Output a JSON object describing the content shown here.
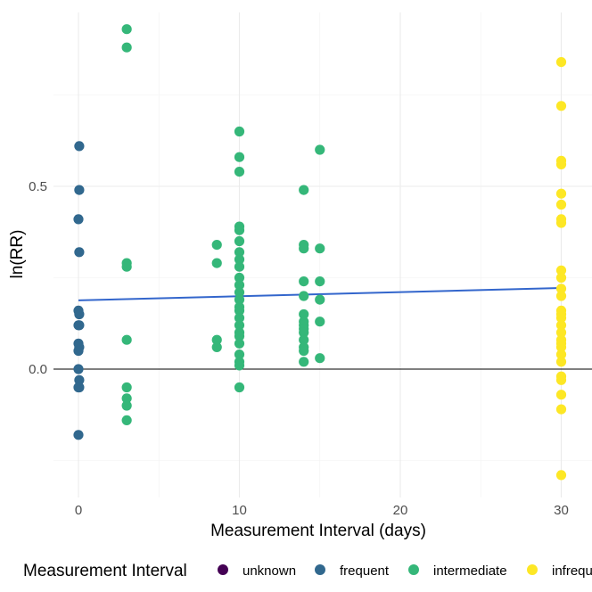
{
  "chart_data": {
    "type": "scatter",
    "title": "",
    "xlabel": "Measurement Interval (days)",
    "ylabel": "ln(RR)",
    "xlim": [
      -2,
      32
    ],
    "ylim": [
      -0.35,
      0.94
    ],
    "x_ticks": [
      0,
      10,
      20,
      30
    ],
    "y_ticks": [
      0.0,
      0.5
    ],
    "x_tick_labels": [
      "0",
      "10",
      "20",
      "30"
    ],
    "y_tick_labels": [
      "0.0",
      "0.5"
    ],
    "grid": true,
    "reference_line_y": 0,
    "legend": {
      "title": "Measurement Interval",
      "position": "bottom",
      "entries": [
        {
          "name": "unknown",
          "color": "#440154"
        },
        {
          "name": "frequent",
          "color": "#31688e"
        },
        {
          "name": "intermediate",
          "color": "#35b779"
        },
        {
          "name": "infrequent",
          "color": "#fde725"
        }
      ]
    },
    "trend_line": {
      "color": "#3366cc",
      "points": [
        [
          0,
          0.188
        ],
        [
          30,
          0.222
        ]
      ]
    },
    "series": [
      {
        "name": "frequent",
        "color": "#31688e",
        "points": [
          [
            0.05,
            0.61
          ],
          [
            0.05,
            0.49
          ],
          [
            0.0,
            0.41
          ],
          [
            0.05,
            0.32
          ],
          [
            0.0,
            0.16
          ],
          [
            0.05,
            0.15
          ],
          [
            0.0,
            0.12
          ],
          [
            0.05,
            0.12
          ],
          [
            0.0,
            0.07
          ],
          [
            0.05,
            0.06
          ],
          [
            0.0,
            0.05
          ],
          [
            0.0,
            0.0
          ],
          [
            0.05,
            -0.03
          ],
          [
            0.0,
            -0.05
          ],
          [
            0.05,
            -0.05
          ],
          [
            0.0,
            -0.18
          ]
        ]
      },
      {
        "name": "intermediate",
        "color": "#35b779",
        "points": [
          [
            3,
            0.93
          ],
          [
            3,
            0.88
          ],
          [
            3,
            0.29
          ],
          [
            3,
            0.28
          ],
          [
            3,
            0.08
          ],
          [
            3,
            -0.05
          ],
          [
            3,
            -0.08
          ],
          [
            3,
            -0.1
          ],
          [
            3,
            -0.14
          ],
          [
            8.6,
            0.34
          ],
          [
            8.6,
            0.29
          ],
          [
            8.6,
            0.08
          ],
          [
            8.6,
            0.06
          ],
          [
            10,
            0.65
          ],
          [
            10,
            0.58
          ],
          [
            10,
            0.54
          ],
          [
            10,
            0.39
          ],
          [
            10,
            0.38
          ],
          [
            10,
            0.35
          ],
          [
            10,
            0.32
          ],
          [
            10,
            0.3
          ],
          [
            10,
            0.28
          ],
          [
            10,
            0.25
          ],
          [
            10,
            0.23
          ],
          [
            10,
            0.21
          ],
          [
            10,
            0.19
          ],
          [
            10,
            0.17
          ],
          [
            10,
            0.16
          ],
          [
            10,
            0.14
          ],
          [
            10,
            0.12
          ],
          [
            10,
            0.1
          ],
          [
            10,
            0.09
          ],
          [
            10,
            0.07
          ],
          [
            10,
            0.04
          ],
          [
            10,
            0.02
          ],
          [
            10,
            0.01
          ],
          [
            10,
            -0.05
          ],
          [
            14,
            0.49
          ],
          [
            14,
            0.34
          ],
          [
            14,
            0.33
          ],
          [
            14,
            0.24
          ],
          [
            14,
            0.2
          ],
          [
            14,
            0.15
          ],
          [
            14,
            0.13
          ],
          [
            14,
            0.12
          ],
          [
            14,
            0.11
          ],
          [
            14,
            0.1
          ],
          [
            14,
            0.08
          ],
          [
            14,
            0.06
          ],
          [
            14,
            0.05
          ],
          [
            14,
            0.02
          ],
          [
            15,
            0.6
          ],
          [
            15,
            0.33
          ],
          [
            15,
            0.24
          ],
          [
            15,
            0.19
          ],
          [
            15,
            0.13
          ],
          [
            15,
            0.03
          ]
        ]
      },
      {
        "name": "infrequent",
        "color": "#fde725",
        "points": [
          [
            30,
            0.84
          ],
          [
            30,
            0.72
          ],
          [
            30,
            0.57
          ],
          [
            30,
            0.56
          ],
          [
            30,
            0.48
          ],
          [
            30,
            0.45
          ],
          [
            30,
            0.41
          ],
          [
            30,
            0.4
          ],
          [
            30,
            0.27
          ],
          [
            30,
            0.25
          ],
          [
            30,
            0.22
          ],
          [
            30,
            0.2
          ],
          [
            30,
            0.16
          ],
          [
            30,
            0.15
          ],
          [
            30,
            0.14
          ],
          [
            30,
            0.12
          ],
          [
            30,
            0.1
          ],
          [
            30,
            0.08
          ],
          [
            30,
            0.07
          ],
          [
            30,
            0.06
          ],
          [
            30,
            0.04
          ],
          [
            30,
            0.02
          ],
          [
            30,
            -0.02
          ],
          [
            30,
            -0.03
          ],
          [
            30,
            -0.07
          ],
          [
            30,
            -0.11
          ],
          [
            30,
            -0.29
          ]
        ]
      }
    ]
  }
}
